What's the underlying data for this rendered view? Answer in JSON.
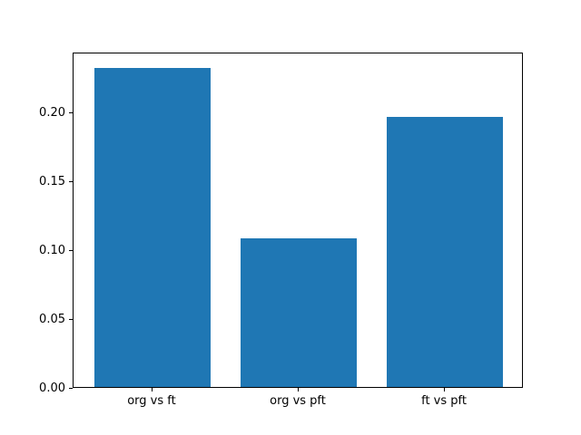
{
  "chart_data": {
    "type": "bar",
    "title": "",
    "xlabel": "",
    "ylabel": "",
    "categories": [
      "org vs ft",
      "org vs pft",
      "ft vs pft"
    ],
    "values": [
      0.232,
      0.108,
      0.196
    ],
    "ylim": [
      0,
      0.2436
    ],
    "yticks": [
      0.0,
      0.05,
      0.1,
      0.15,
      0.2
    ],
    "ytick_labels": [
      "0.00",
      "0.05",
      "0.10",
      "0.15",
      "0.20"
    ],
    "bar_color": "#1f77b4",
    "bar_width_fraction": 0.8,
    "grid": false,
    "legend": false
  }
}
